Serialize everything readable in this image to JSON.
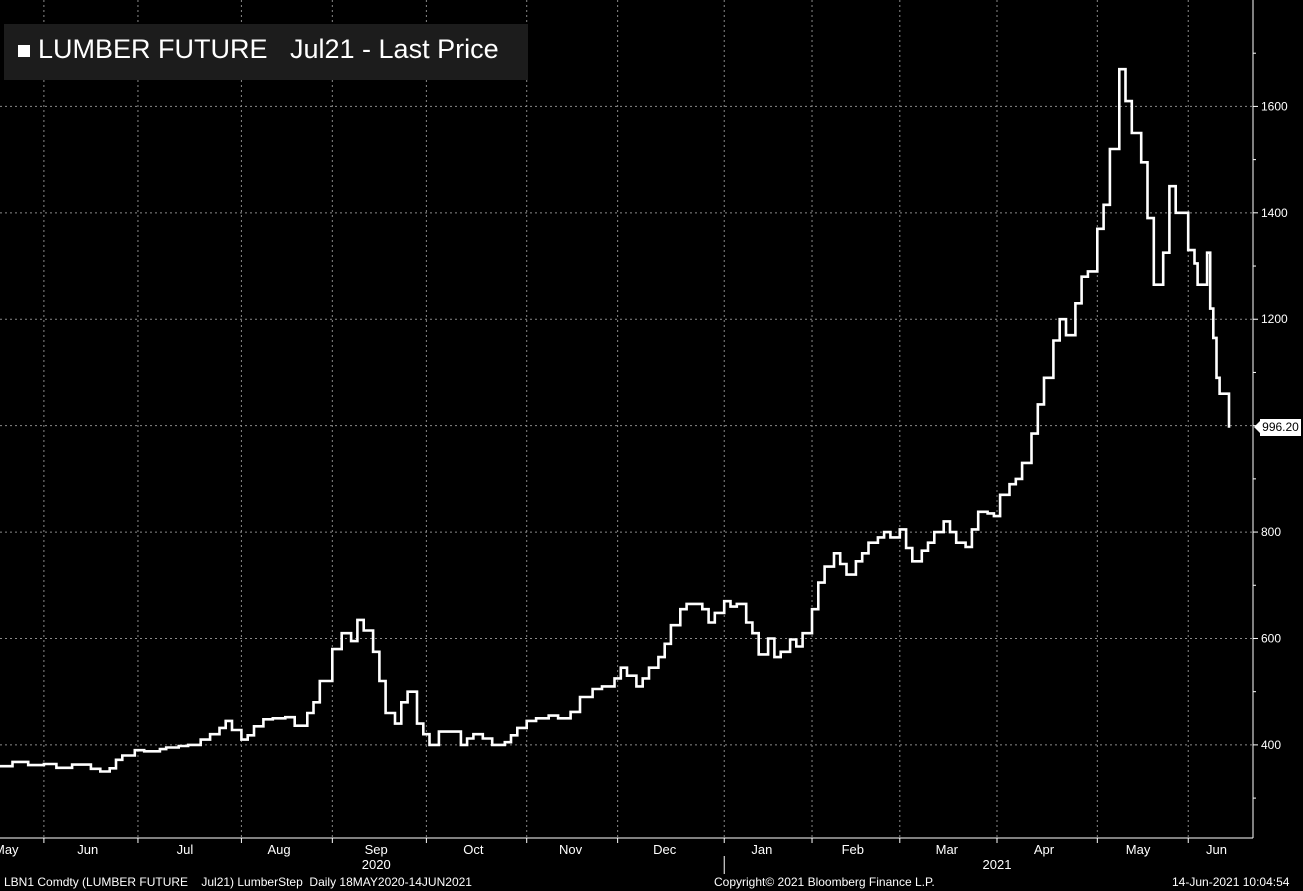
{
  "legend": {
    "series": "LUMBER FUTURE",
    "measure": "Jul21 - Last Price"
  },
  "footer": {
    "ticker": "LBN1 Comdty (LUMBER FUTURE    Jul21) LumberStep  Daily 18MAY2020-14JUN2021",
    "copyright": "Copyright© 2021 Bloomberg Finance L.P.",
    "timestamp": "14-Jun-2021 10:04:54"
  },
  "colors": {
    "background": "#000000",
    "line": "#ffffff",
    "grid": "#8a8a8a"
  },
  "chart_data": {
    "type": "line",
    "step": true,
    "grid": true,
    "legend_position": "top-left",
    "y_axis_side": "right",
    "ylim": [
      225,
      1800
    ],
    "yticks": [
      400,
      600,
      800,
      1000,
      1200,
      1400,
      1600
    ],
    "ytick_labels": [
      "400",
      "600",
      "800",
      "",
      "1200",
      "1400",
      "1600"
    ],
    "xlim": [
      "2020-05-18",
      "2021-06-14"
    ],
    "x_month_labels": [
      {
        "label": "May",
        "date": "2020-05-20"
      },
      {
        "label": "Jun",
        "date": "2020-06-15"
      },
      {
        "label": "Jul",
        "date": "2020-07-16"
      },
      {
        "label": "Aug",
        "date": "2020-08-15"
      },
      {
        "label": "Sep",
        "date": "2020-09-15"
      },
      {
        "label": "Oct",
        "date": "2020-10-16"
      },
      {
        "label": "Nov",
        "date": "2020-11-16"
      },
      {
        "label": "Dec",
        "date": "2020-12-16"
      },
      {
        "label": "Jan",
        "date": "2021-01-16"
      },
      {
        "label": "Feb",
        "date": "2021-02-14"
      },
      {
        "label": "Mar",
        "date": "2021-03-16"
      },
      {
        "label": "Apr",
        "date": "2021-04-16"
      },
      {
        "label": "May",
        "date": "2021-05-16"
      },
      {
        "label": "Jun",
        "date": "2021-06-10"
      }
    ],
    "x_gridlines": [
      "2020-06-01",
      "2020-07-01",
      "2020-08-03",
      "2020-09-01",
      "2020-10-01",
      "2020-11-02",
      "2020-12-01",
      "2021-01-04",
      "2021-02-01",
      "2021-03-01",
      "2021-04-01",
      "2021-05-03",
      "2021-06-01"
    ],
    "x_year_labels": [
      {
        "label": "2020",
        "date": "2020-09-15"
      },
      {
        "label": "2021",
        "date": "2021-04-01"
      }
    ],
    "last_price_label": "996.20",
    "last_price": 996.2,
    "series": [
      {
        "name": "LUMBER FUTURE Jul21 - Last Price",
        "points": [
          [
            "2020-05-18",
            360
          ],
          [
            "2020-05-22",
            368
          ],
          [
            "2020-05-27",
            362
          ],
          [
            "2020-06-01",
            364
          ],
          [
            "2020-06-05",
            357
          ],
          [
            "2020-06-10",
            363
          ],
          [
            "2020-06-16",
            355
          ],
          [
            "2020-06-19",
            350
          ],
          [
            "2020-06-22",
            356
          ],
          [
            "2020-06-24",
            372
          ],
          [
            "2020-06-26",
            380
          ],
          [
            "2020-06-30",
            390
          ],
          [
            "2020-07-03",
            388
          ],
          [
            "2020-07-08",
            392
          ],
          [
            "2020-07-10",
            395
          ],
          [
            "2020-07-14",
            398
          ],
          [
            "2020-07-17",
            400
          ],
          [
            "2020-07-21",
            410
          ],
          [
            "2020-07-24",
            420
          ],
          [
            "2020-07-27",
            432
          ],
          [
            "2020-07-29",
            445
          ],
          [
            "2020-07-31",
            428
          ],
          [
            "2020-08-03",
            410
          ],
          [
            "2020-08-05",
            418
          ],
          [
            "2020-08-07",
            435
          ],
          [
            "2020-08-10",
            448
          ],
          [
            "2020-08-13",
            450
          ],
          [
            "2020-08-17",
            452
          ],
          [
            "2020-08-20",
            436
          ],
          [
            "2020-08-24",
            460
          ],
          [
            "2020-08-26",
            480
          ],
          [
            "2020-08-28",
            520
          ],
          [
            "2020-09-01",
            580
          ],
          [
            "2020-09-04",
            610
          ],
          [
            "2020-09-07",
            595
          ],
          [
            "2020-09-09",
            635
          ],
          [
            "2020-09-11",
            615
          ],
          [
            "2020-09-14",
            575
          ],
          [
            "2020-09-16",
            520
          ],
          [
            "2020-09-18",
            460
          ],
          [
            "2020-09-21",
            440
          ],
          [
            "2020-09-23",
            480
          ],
          [
            "2020-09-25",
            500
          ],
          [
            "2020-09-28",
            440
          ],
          [
            "2020-09-30",
            420
          ],
          [
            "2020-10-02",
            400
          ],
          [
            "2020-10-05",
            425
          ],
          [
            "2020-10-08",
            425
          ],
          [
            "2020-10-12",
            400
          ],
          [
            "2020-10-14",
            412
          ],
          [
            "2020-10-16",
            420
          ],
          [
            "2020-10-19",
            412
          ],
          [
            "2020-10-22",
            400
          ],
          [
            "2020-10-26",
            405
          ],
          [
            "2020-10-28",
            418
          ],
          [
            "2020-10-30",
            432
          ],
          [
            "2020-11-02",
            445
          ],
          [
            "2020-11-05",
            450
          ],
          [
            "2020-11-09",
            455
          ],
          [
            "2020-11-12",
            450
          ],
          [
            "2020-11-16",
            462
          ],
          [
            "2020-11-19",
            490
          ],
          [
            "2020-11-23",
            505
          ],
          [
            "2020-11-26",
            510
          ],
          [
            "2020-11-30",
            525
          ],
          [
            "2020-12-02",
            545
          ],
          [
            "2020-12-04",
            530
          ],
          [
            "2020-12-07",
            510
          ],
          [
            "2020-12-09",
            525
          ],
          [
            "2020-12-11",
            545
          ],
          [
            "2020-12-14",
            565
          ],
          [
            "2020-12-16",
            590
          ],
          [
            "2020-12-18",
            625
          ],
          [
            "2020-12-21",
            655
          ],
          [
            "2020-12-23",
            665
          ],
          [
            "2020-12-28",
            655
          ],
          [
            "2020-12-30",
            630
          ],
          [
            "2021-01-01",
            648
          ],
          [
            "2021-01-04",
            670
          ],
          [
            "2021-01-06",
            660
          ],
          [
            "2021-01-08",
            665
          ],
          [
            "2021-01-11",
            630
          ],
          [
            "2021-01-13",
            610
          ],
          [
            "2021-01-15",
            570
          ],
          [
            "2021-01-18",
            600
          ],
          [
            "2021-01-20",
            565
          ],
          [
            "2021-01-22",
            575
          ],
          [
            "2021-01-25",
            598
          ],
          [
            "2021-01-27",
            585
          ],
          [
            "2021-01-29",
            610
          ],
          [
            "2021-02-01",
            655
          ],
          [
            "2021-02-03",
            705
          ],
          [
            "2021-02-05",
            735
          ],
          [
            "2021-02-08",
            760
          ],
          [
            "2021-02-10",
            740
          ],
          [
            "2021-02-12",
            720
          ],
          [
            "2021-02-15",
            745
          ],
          [
            "2021-02-17",
            760
          ],
          [
            "2021-02-19",
            780
          ],
          [
            "2021-02-22",
            790
          ],
          [
            "2021-02-24",
            800
          ],
          [
            "2021-02-26",
            790
          ],
          [
            "2021-03-01",
            805
          ],
          [
            "2021-03-03",
            770
          ],
          [
            "2021-03-05",
            745
          ],
          [
            "2021-03-08",
            765
          ],
          [
            "2021-03-10",
            780
          ],
          [
            "2021-03-12",
            800
          ],
          [
            "2021-03-15",
            820
          ],
          [
            "2021-03-17",
            800
          ],
          [
            "2021-03-19",
            780
          ],
          [
            "2021-03-22",
            772
          ],
          [
            "2021-03-24",
            805
          ],
          [
            "2021-03-26",
            838
          ],
          [
            "2021-03-29",
            835
          ],
          [
            "2021-03-31",
            830
          ],
          [
            "2021-04-02",
            870
          ],
          [
            "2021-04-05",
            890
          ],
          [
            "2021-04-07",
            900
          ],
          [
            "2021-04-09",
            930
          ],
          [
            "2021-04-12",
            985
          ],
          [
            "2021-04-14",
            1040
          ],
          [
            "2021-04-16",
            1090
          ],
          [
            "2021-04-19",
            1160
          ],
          [
            "2021-04-21",
            1200
          ],
          [
            "2021-04-23",
            1170
          ],
          [
            "2021-04-26",
            1230
          ],
          [
            "2021-04-28",
            1280
          ],
          [
            "2021-04-30",
            1290
          ],
          [
            "2021-05-03",
            1370
          ],
          [
            "2021-05-05",
            1415
          ],
          [
            "2021-05-07",
            1520
          ],
          [
            "2021-05-10",
            1670
          ],
          [
            "2021-05-12",
            1610
          ],
          [
            "2021-05-14",
            1550
          ],
          [
            "2021-05-17",
            1495
          ],
          [
            "2021-05-19",
            1390
          ],
          [
            "2021-05-21",
            1265
          ],
          [
            "2021-05-24",
            1325
          ],
          [
            "2021-05-26",
            1450
          ],
          [
            "2021-05-28",
            1400
          ],
          [
            "2021-06-01",
            1330
          ],
          [
            "2021-06-03",
            1305
          ],
          [
            "2021-06-04",
            1265
          ],
          [
            "2021-06-07",
            1325
          ],
          [
            "2021-06-08",
            1220
          ],
          [
            "2021-06-09",
            1165
          ],
          [
            "2021-06-10",
            1090
          ],
          [
            "2021-06-11",
            1060
          ],
          [
            "2021-06-14",
            996.2
          ]
        ]
      }
    ]
  }
}
